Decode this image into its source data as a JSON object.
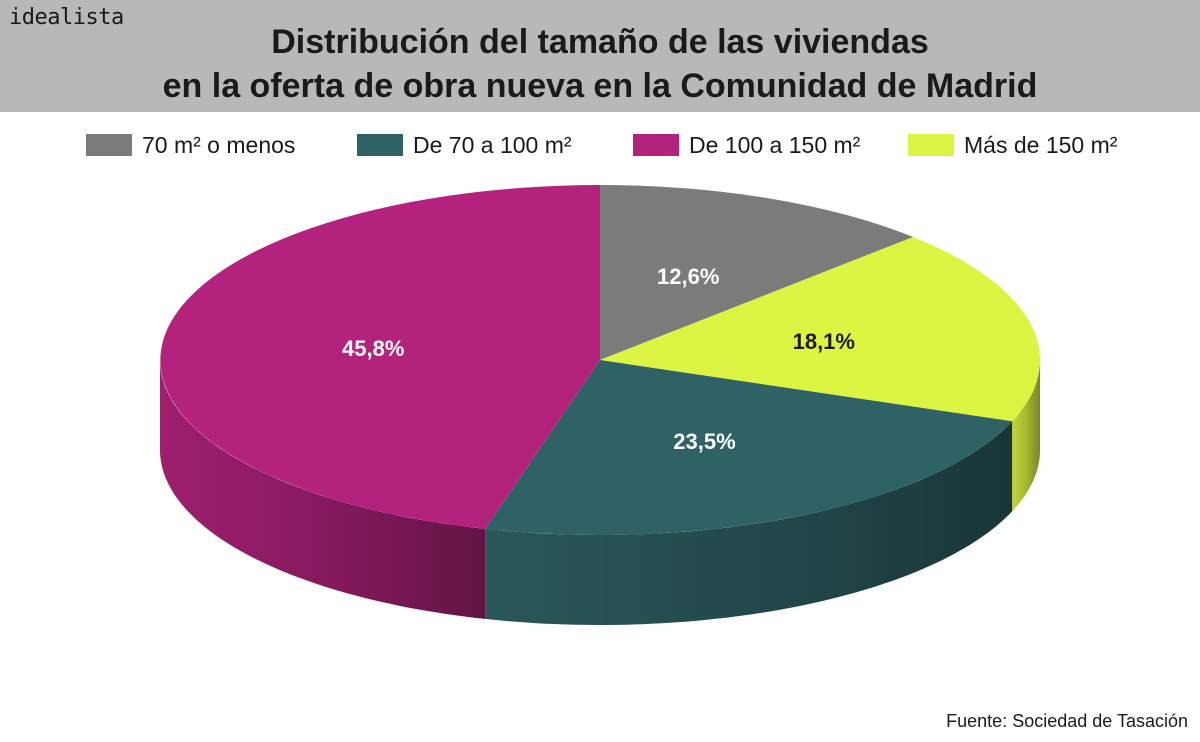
{
  "brand": "idealista",
  "title_lines": [
    "Distribución del tamaño de las viviendas",
    "en la oferta de obra nueva en la Comunidad de Madrid"
  ],
  "source": "Fuente: Sociedad de Tasación",
  "chart_data": {
    "type": "pie",
    "style": "3d",
    "legend_position": "top",
    "categories": [
      "70 m² o menos",
      "De 70 a 100 m²",
      "De 100 a 150 m²",
      "Más de 150 m²"
    ],
    "values": [
      12.6,
      23.5,
      45.8,
      18.1
    ],
    "labels": [
      "12,6%",
      "23,5%",
      "45,8%",
      "18,1%"
    ],
    "colors": [
      "#7b7b7b",
      "#2f6264",
      "#b3237d",
      "#dcf542"
    ],
    "label_colors": [
      "#ffffff",
      "#ffffff",
      "#ffffff",
      "#1a1a1a"
    ],
    "slice_order_clockwise_from_top": [
      0,
      3,
      1,
      2
    ]
  }
}
